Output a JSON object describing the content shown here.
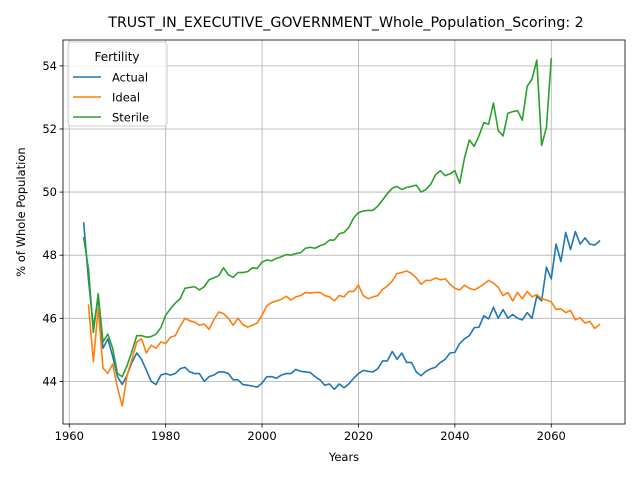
{
  "chart_data": {
    "type": "line",
    "title": "TRUST_IN_EXECUTIVE_GOVERNMENT_Whole_Population_Scoring: 2",
    "xlabel": "Years",
    "ylabel": "% of Whole Population",
    "xlim": [
      1958.7,
      2075.3
    ],
    "ylim": [
      42.65,
      54.82
    ],
    "xticks": [
      1960,
      1980,
      2000,
      2020,
      2040,
      2060
    ],
    "yticks": [
      44,
      46,
      48,
      50,
      52,
      54
    ],
    "grid": true,
    "legend": {
      "title": "Fertility",
      "position": "upper left"
    },
    "series": [
      {
        "name": "Actual",
        "color": "#1f77b4",
        "points": [
          [
            1963,
            49.02
          ],
          [
            1964,
            47.2
          ],
          [
            1965,
            45.7
          ],
          [
            1966,
            46.65
          ],
          [
            1967,
            45.05
          ],
          [
            1968,
            45.35
          ],
          [
            1969,
            44.8
          ],
          [
            1970,
            44.15
          ],
          [
            1971,
            43.9
          ],
          [
            1972,
            44.2
          ],
          [
            1973,
            44.6
          ],
          [
            1974,
            44.9
          ],
          [
            1975,
            44.7
          ],
          [
            1976,
            44.35
          ],
          [
            1977,
            44.0
          ],
          [
            1978,
            43.9
          ],
          [
            1979,
            44.2
          ],
          [
            1980,
            44.25
          ],
          [
            1981,
            44.2
          ],
          [
            1982,
            44.25
          ],
          [
            1983,
            44.4
          ],
          [
            1984,
            44.45
          ],
          [
            1985,
            44.3
          ],
          [
            1986,
            44.25
          ],
          [
            1987,
            44.25
          ],
          [
            1988,
            44.0
          ],
          [
            1989,
            44.15
          ],
          [
            1990,
            44.2
          ],
          [
            1991,
            44.3
          ],
          [
            1992,
            44.3
          ],
          [
            1993,
            44.25
          ],
          [
            1994,
            44.05
          ],
          [
            1995,
            44.05
          ],
          [
            1996,
            43.9
          ],
          [
            1997,
            43.88
          ],
          [
            1998,
            43.85
          ],
          [
            1999,
            43.82
          ],
          [
            2000,
            43.95
          ],
          [
            2001,
            44.15
          ],
          [
            2002,
            44.15
          ],
          [
            2003,
            44.1
          ],
          [
            2004,
            44.2
          ],
          [
            2005,
            44.25
          ],
          [
            2006,
            44.25
          ],
          [
            2007,
            44.38
          ],
          [
            2008,
            44.32
          ],
          [
            2009,
            44.3
          ],
          [
            2010,
            44.28
          ],
          [
            2011,
            44.15
          ],
          [
            2012,
            44.05
          ],
          [
            2013,
            43.88
          ],
          [
            2014,
            43.92
          ],
          [
            2015,
            43.75
          ],
          [
            2016,
            43.92
          ],
          [
            2017,
            43.8
          ],
          [
            2018,
            43.92
          ],
          [
            2019,
            44.1
          ],
          [
            2020,
            44.25
          ],
          [
            2021,
            44.35
          ],
          [
            2022,
            44.32
          ],
          [
            2023,
            44.3
          ],
          [
            2024,
            44.4
          ],
          [
            2025,
            44.65
          ],
          [
            2026,
            44.65
          ],
          [
            2027,
            44.95
          ],
          [
            2028,
            44.7
          ],
          [
            2029,
            44.9
          ],
          [
            2030,
            44.6
          ],
          [
            2031,
            44.6
          ],
          [
            2032,
            44.3
          ],
          [
            2033,
            44.18
          ],
          [
            2034,
            44.32
          ],
          [
            2035,
            44.4
          ],
          [
            2036,
            44.45
          ],
          [
            2037,
            44.6
          ],
          [
            2038,
            44.7
          ],
          [
            2039,
            44.9
          ],
          [
            2040,
            44.92
          ],
          [
            2041,
            45.2
          ],
          [
            2042,
            45.35
          ],
          [
            2043,
            45.45
          ],
          [
            2044,
            45.7
          ],
          [
            2045,
            45.72
          ],
          [
            2046,
            46.08
          ],
          [
            2047,
            45.98
          ],
          [
            2048,
            46.35
          ],
          [
            2049,
            46.0
          ],
          [
            2050,
            46.28
          ],
          [
            2051,
            46.0
          ],
          [
            2052,
            46.12
          ],
          [
            2053,
            46.0
          ],
          [
            2054,
            45.95
          ],
          [
            2055,
            46.18
          ],
          [
            2056,
            46.0
          ],
          [
            2057,
            46.7
          ],
          [
            2058,
            46.55
          ],
          [
            2059,
            47.62
          ],
          [
            2060,
            47.25
          ],
          [
            2061,
            48.35
          ],
          [
            2062,
            47.8
          ],
          [
            2063,
            48.72
          ],
          [
            2064,
            48.18
          ],
          [
            2065,
            48.75
          ],
          [
            2066,
            48.35
          ],
          [
            2067,
            48.55
          ],
          [
            2068,
            48.35
          ],
          [
            2069,
            48.32
          ],
          [
            2070,
            48.45
          ]
        ]
      },
      {
        "name": "Ideal",
        "color": "#ff7f0e",
        "points": [
          [
            1964,
            46.42
          ],
          [
            1965,
            44.62
          ],
          [
            1966,
            46.32
          ],
          [
            1967,
            44.42
          ],
          [
            1968,
            44.25
          ],
          [
            1969,
            44.55
          ],
          [
            1970,
            43.8
          ],
          [
            1971,
            43.22
          ],
          [
            1972,
            44.2
          ],
          [
            1973,
            44.7
          ],
          [
            1974,
            45.25
          ],
          [
            1975,
            45.35
          ],
          [
            1976,
            44.9
          ],
          [
            1977,
            45.15
          ],
          [
            1978,
            45.05
          ],
          [
            1979,
            45.25
          ],
          [
            1980,
            45.2
          ],
          [
            1981,
            45.4
          ],
          [
            1982,
            45.45
          ],
          [
            1983,
            45.75
          ],
          [
            1984,
            46.0
          ],
          [
            1985,
            45.92
          ],
          [
            1986,
            45.88
          ],
          [
            1987,
            45.78
          ],
          [
            1988,
            45.82
          ],
          [
            1989,
            45.65
          ],
          [
            1990,
            45.95
          ],
          [
            1991,
            46.2
          ],
          [
            1992,
            46.15
          ],
          [
            1993,
            46.0
          ],
          [
            1994,
            45.78
          ],
          [
            1995,
            46.0
          ],
          [
            1996,
            45.8
          ],
          [
            1997,
            45.72
          ],
          [
            1998,
            45.78
          ],
          [
            1999,
            45.85
          ],
          [
            2000,
            46.1
          ],
          [
            2001,
            46.4
          ],
          [
            2002,
            46.5
          ],
          [
            2003,
            46.55
          ],
          [
            2004,
            46.6
          ],
          [
            2005,
            46.7
          ],
          [
            2006,
            46.58
          ],
          [
            2007,
            46.68
          ],
          [
            2008,
            46.72
          ],
          [
            2009,
            46.82
          ],
          [
            2010,
            46.8
          ],
          [
            2011,
            46.82
          ],
          [
            2012,
            46.82
          ],
          [
            2013,
            46.72
          ],
          [
            2014,
            46.68
          ],
          [
            2015,
            46.55
          ],
          [
            2016,
            46.72
          ],
          [
            2017,
            46.68
          ],
          [
            2018,
            46.85
          ],
          [
            2019,
            46.85
          ],
          [
            2020,
            47.05
          ],
          [
            2021,
            46.72
          ],
          [
            2022,
            46.62
          ],
          [
            2023,
            46.68
          ],
          [
            2024,
            46.72
          ],
          [
            2025,
            46.92
          ],
          [
            2026,
            47.02
          ],
          [
            2027,
            47.18
          ],
          [
            2028,
            47.42
          ],
          [
            2029,
            47.45
          ],
          [
            2030,
            47.5
          ],
          [
            2031,
            47.42
          ],
          [
            2032,
            47.28
          ],
          [
            2033,
            47.08
          ],
          [
            2034,
            47.2
          ],
          [
            2035,
            47.2
          ],
          [
            2036,
            47.28
          ],
          [
            2037,
            47.22
          ],
          [
            2038,
            47.25
          ],
          [
            2039,
            47.08
          ],
          [
            2040,
            46.95
          ],
          [
            2041,
            46.9
          ],
          [
            2042,
            47.05
          ],
          [
            2043,
            46.95
          ],
          [
            2044,
            46.9
          ],
          [
            2045,
            46.98
          ],
          [
            2046,
            47.08
          ],
          [
            2047,
            47.2
          ],
          [
            2048,
            47.12
          ],
          [
            2049,
            46.98
          ],
          [
            2050,
            46.72
          ],
          [
            2051,
            46.82
          ],
          [
            2052,
            46.55
          ],
          [
            2053,
            46.82
          ],
          [
            2054,
            46.62
          ],
          [
            2055,
            46.85
          ],
          [
            2056,
            46.68
          ],
          [
            2057,
            46.75
          ],
          [
            2058,
            46.62
          ],
          [
            2059,
            46.58
          ],
          [
            2060,
            46.52
          ],
          [
            2061,
            46.28
          ],
          [
            2062,
            46.3
          ],
          [
            2063,
            46.18
          ],
          [
            2064,
            46.25
          ],
          [
            2065,
            45.95
          ],
          [
            2066,
            46.02
          ],
          [
            2067,
            45.85
          ],
          [
            2068,
            45.9
          ],
          [
            2069,
            45.68
          ],
          [
            2070,
            45.8
          ]
        ]
      },
      {
        "name": "Sterile",
        "color": "#2ca02c",
        "points": [
          [
            1963,
            48.55
          ],
          [
            1964,
            47.55
          ],
          [
            1965,
            45.55
          ],
          [
            1966,
            46.78
          ],
          [
            1967,
            45.25
          ],
          [
            1968,
            45.5
          ],
          [
            1969,
            45.05
          ],
          [
            1970,
            44.25
          ],
          [
            1971,
            44.15
          ],
          [
            1972,
            44.5
          ],
          [
            1973,
            44.95
          ],
          [
            1974,
            45.45
          ],
          [
            1975,
            45.45
          ],
          [
            1976,
            45.4
          ],
          [
            1977,
            45.42
          ],
          [
            1978,
            45.5
          ],
          [
            1979,
            45.7
          ],
          [
            1980,
            46.1
          ],
          [
            1981,
            46.3
          ],
          [
            1982,
            46.48
          ],
          [
            1983,
            46.62
          ],
          [
            1984,
            46.95
          ],
          [
            1985,
            46.98
          ],
          [
            1986,
            47.0
          ],
          [
            1987,
            46.9
          ],
          [
            1988,
            47.0
          ],
          [
            1989,
            47.22
          ],
          [
            1990,
            47.28
          ],
          [
            1991,
            47.35
          ],
          [
            1992,
            47.6
          ],
          [
            1993,
            47.38
          ],
          [
            1994,
            47.3
          ],
          [
            1995,
            47.45
          ],
          [
            1996,
            47.45
          ],
          [
            1997,
            47.48
          ],
          [
            1998,
            47.6
          ],
          [
            1999,
            47.58
          ],
          [
            2000,
            47.78
          ],
          [
            2001,
            47.85
          ],
          [
            2002,
            47.82
          ],
          [
            2003,
            47.9
          ],
          [
            2004,
            47.95
          ],
          [
            2005,
            48.02
          ],
          [
            2006,
            48.0
          ],
          [
            2007,
            48.05
          ],
          [
            2008,
            48.08
          ],
          [
            2009,
            48.22
          ],
          [
            2010,
            48.25
          ],
          [
            2011,
            48.22
          ],
          [
            2012,
            48.3
          ],
          [
            2013,
            48.35
          ],
          [
            2014,
            48.48
          ],
          [
            2015,
            48.48
          ],
          [
            2016,
            48.68
          ],
          [
            2017,
            48.72
          ],
          [
            2018,
            48.88
          ],
          [
            2019,
            49.18
          ],
          [
            2020,
            49.35
          ],
          [
            2021,
            49.4
          ],
          [
            2022,
            49.42
          ],
          [
            2023,
            49.42
          ],
          [
            2024,
            49.55
          ],
          [
            2025,
            49.75
          ],
          [
            2026,
            49.95
          ],
          [
            2027,
            50.12
          ],
          [
            2028,
            50.18
          ],
          [
            2029,
            50.08
          ],
          [
            2030,
            50.15
          ],
          [
            2031,
            50.18
          ],
          [
            2032,
            50.22
          ],
          [
            2033,
            50.0
          ],
          [
            2034,
            50.08
          ],
          [
            2035,
            50.25
          ],
          [
            2036,
            50.55
          ],
          [
            2037,
            50.68
          ],
          [
            2038,
            50.52
          ],
          [
            2039,
            50.58
          ],
          [
            2040,
            50.68
          ],
          [
            2041,
            50.28
          ],
          [
            2042,
            51.08
          ],
          [
            2043,
            51.65
          ],
          [
            2044,
            51.45
          ],
          [
            2045,
            51.78
          ],
          [
            2046,
            52.2
          ],
          [
            2047,
            52.15
          ],
          [
            2048,
            52.82
          ],
          [
            2049,
            51.95
          ],
          [
            2050,
            51.78
          ],
          [
            2051,
            52.5
          ],
          [
            2052,
            52.55
          ],
          [
            2053,
            52.58
          ],
          [
            2054,
            52.28
          ],
          [
            2055,
            53.35
          ],
          [
            2056,
            53.58
          ],
          [
            2057,
            54.18
          ],
          [
            2058,
            51.48
          ],
          [
            2059,
            52.05
          ],
          [
            2060,
            54.22
          ]
        ]
      }
    ]
  }
}
